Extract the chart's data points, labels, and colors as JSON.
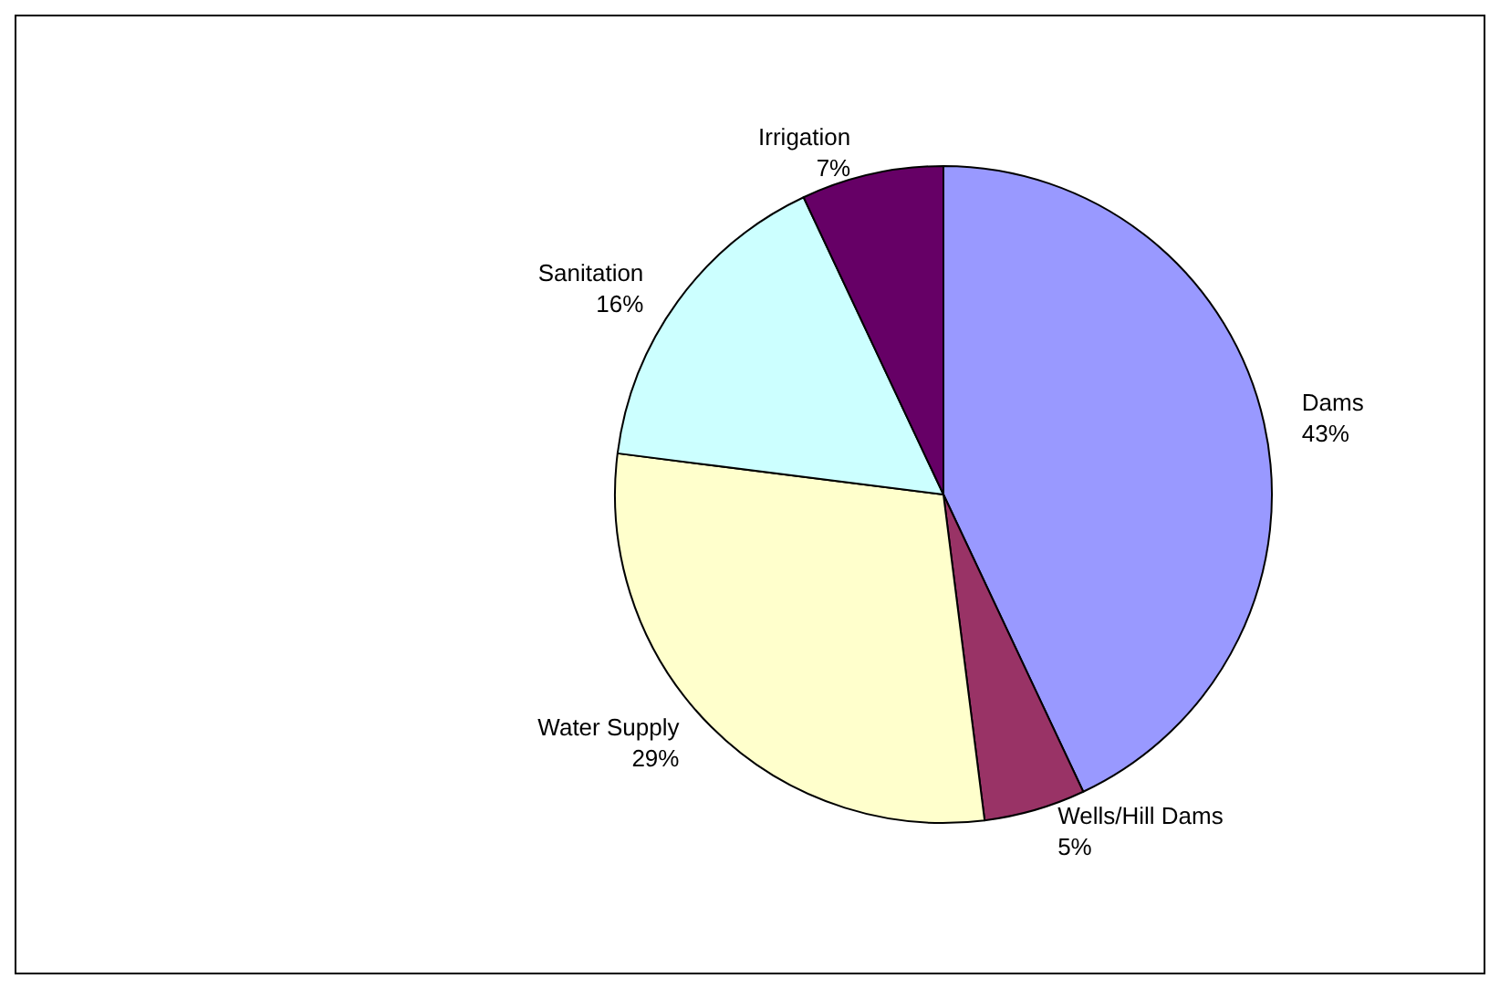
{
  "chart_data": {
    "type": "pie",
    "categories": [
      "Dams",
      "Wells/Hill Dams",
      "Water Supply",
      "Sanitation",
      "Irrigation"
    ],
    "values": [
      43,
      5,
      29,
      16,
      7
    ],
    "value_labels": [
      "43%",
      "5%",
      "29%",
      "16%",
      "7%"
    ],
    "colors": [
      "#9999ff",
      "#993366",
      "#ffffcc",
      "#ccffff",
      "#660066"
    ],
    "legend": false
  }
}
